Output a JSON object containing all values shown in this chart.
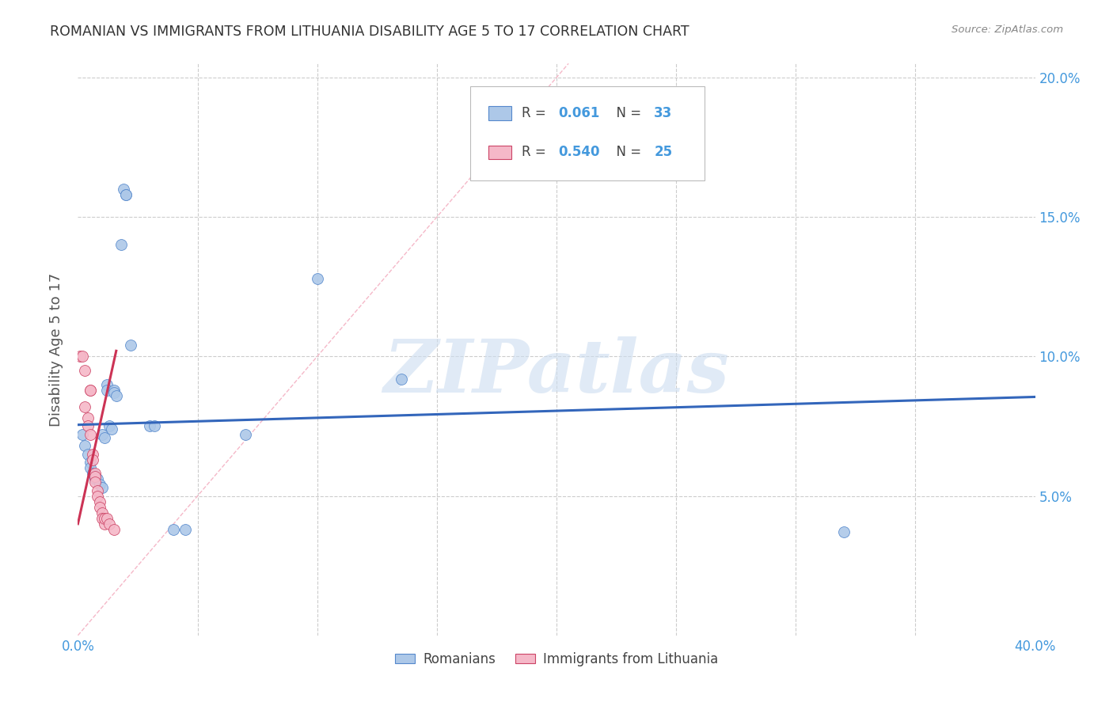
{
  "title": "ROMANIAN VS IMMIGRANTS FROM LITHUANIA DISABILITY AGE 5 TO 17 CORRELATION CHART",
  "source": "Source: ZipAtlas.com",
  "ylabel": "Disability Age 5 to 17",
  "xlim": [
    0.0,
    0.4
  ],
  "ylim": [
    0.0,
    0.205
  ],
  "blue_R": 0.061,
  "blue_N": 33,
  "pink_R": 0.54,
  "pink_N": 25,
  "blue_color": "#adc8e8",
  "pink_color": "#f5b8c8",
  "blue_edge_color": "#5588cc",
  "pink_edge_color": "#cc4466",
  "blue_line_color": "#3366bb",
  "pink_line_color": "#cc3355",
  "tick_color": "#4499dd",
  "grid_color": "#cccccc",
  "title_color": "#333333",
  "source_color": "#888888",
  "ylabel_color": "#555555",
  "background_color": "#ffffff",
  "watermark": "ZIPatlas",
  "watermark_color": "#ccddf0",
  "blue_scatter": [
    [
      0.002,
      0.072
    ],
    [
      0.003,
      0.068
    ],
    [
      0.004,
      0.065
    ],
    [
      0.005,
      0.062
    ],
    [
      0.005,
      0.06
    ],
    [
      0.006,
      0.058
    ],
    [
      0.007,
      0.057
    ],
    [
      0.007,
      0.056
    ],
    [
      0.008,
      0.056
    ],
    [
      0.009,
      0.054
    ],
    [
      0.01,
      0.053
    ],
    [
      0.01,
      0.072
    ],
    [
      0.011,
      0.071
    ],
    [
      0.012,
      0.09
    ],
    [
      0.012,
      0.088
    ],
    [
      0.013,
      0.075
    ],
    [
      0.014,
      0.074
    ],
    [
      0.015,
      0.088
    ],
    [
      0.015,
      0.087
    ],
    [
      0.016,
      0.086
    ],
    [
      0.018,
      0.14
    ],
    [
      0.019,
      0.16
    ],
    [
      0.02,
      0.158
    ],
    [
      0.02,
      0.158
    ],
    [
      0.022,
      0.104
    ],
    [
      0.03,
      0.075
    ],
    [
      0.032,
      0.075
    ],
    [
      0.04,
      0.038
    ],
    [
      0.045,
      0.038
    ],
    [
      0.07,
      0.072
    ],
    [
      0.1,
      0.128
    ],
    [
      0.135,
      0.092
    ],
    [
      0.32,
      0.037
    ]
  ],
  "pink_scatter": [
    [
      0.001,
      0.1
    ],
    [
      0.002,
      0.1
    ],
    [
      0.003,
      0.095
    ],
    [
      0.003,
      0.082
    ],
    [
      0.004,
      0.078
    ],
    [
      0.004,
      0.075
    ],
    [
      0.005,
      0.072
    ],
    [
      0.005,
      0.088
    ],
    [
      0.005,
      0.088
    ],
    [
      0.006,
      0.065
    ],
    [
      0.006,
      0.063
    ],
    [
      0.007,
      0.058
    ],
    [
      0.007,
      0.057
    ],
    [
      0.007,
      0.055
    ],
    [
      0.008,
      0.052
    ],
    [
      0.008,
      0.05
    ],
    [
      0.009,
      0.048
    ],
    [
      0.009,
      0.046
    ],
    [
      0.01,
      0.044
    ],
    [
      0.01,
      0.042
    ],
    [
      0.011,
      0.04
    ],
    [
      0.011,
      0.042
    ],
    [
      0.012,
      0.042
    ],
    [
      0.013,
      0.04
    ],
    [
      0.015,
      0.038
    ]
  ],
  "blue_trend": [
    0.0,
    0.0755,
    0.4,
    0.0855
  ],
  "pink_trend": [
    0.0,
    0.04,
    0.016,
    0.102
  ],
  "pink_diag": [
    0.0,
    0.0,
    0.205,
    0.205
  ],
  "marker_size": 100
}
